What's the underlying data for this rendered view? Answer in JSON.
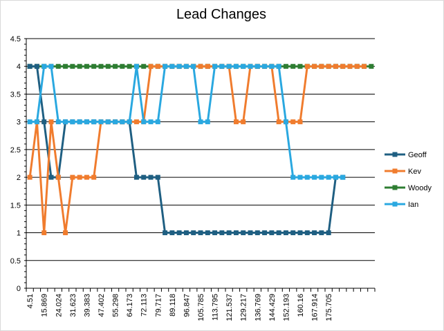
{
  "chart_data": {
    "type": "line",
    "title": "Lead Changes",
    "xlabel": "",
    "ylabel": "",
    "ylim": [
      0,
      4.5
    ],
    "y_ticks": [
      "0",
      "0.5",
      "1",
      "1.5",
      "2",
      "2.5",
      "3",
      "3.5",
      "4",
      "4.5"
    ],
    "x_tick_labels": [
      "4.51",
      "15.869",
      "24.024",
      "31.623",
      "39.383",
      "47.402",
      "55.298",
      "64.173",
      "72.113",
      "79.717",
      "89.118",
      "96.847",
      "105.785",
      "113.795",
      "121.537",
      "129.217",
      "136.769",
      "144.429",
      "152.193",
      "160.16",
      "167.914",
      "175.705"
    ],
    "grid": "horizontal",
    "legend_position": "right",
    "series": [
      {
        "name": "Geoff",
        "color": "#1f5f82",
        "values": [
          4,
          4,
          3,
          2,
          2,
          3,
          3,
          3,
          3,
          3,
          3,
          3,
          3,
          3,
          3,
          2,
          2,
          2,
          2,
          1,
          1,
          1,
          1,
          1,
          1,
          1,
          1,
          1,
          1,
          1,
          1,
          1,
          1,
          1,
          1,
          1,
          1,
          1,
          1,
          1,
          1,
          1,
          1,
          2,
          2
        ]
      },
      {
        "name": "Kev",
        "color": "#f07c2e",
        "values": [
          2,
          3,
          1,
          3,
          2,
          1,
          2,
          2,
          2,
          2,
          3,
          3,
          3,
          3,
          3,
          3,
          3,
          4,
          4,
          4,
          4,
          4,
          4,
          4,
          4,
          4,
          4,
          4,
          4,
          3,
          3,
          4,
          4,
          4,
          4,
          3,
          3,
          3,
          3,
          4,
          4,
          4,
          4,
          4,
          4,
          4,
          4,
          4
        ]
      },
      {
        "name": "Woody",
        "color": "#2e7d32",
        "values": [
          4,
          4,
          4,
          4,
          4,
          4,
          4,
          4,
          4,
          4,
          4,
          4,
          4,
          4,
          4,
          4,
          4,
          4,
          4,
          4,
          4,
          4,
          4,
          4,
          4,
          4,
          4,
          4,
          4,
          4,
          4,
          4,
          4,
          4,
          4,
          4,
          4,
          4,
          4,
          4,
          4,
          4,
          4,
          4,
          4,
          4,
          4,
          4,
          4
        ]
      },
      {
        "name": "Ian",
        "color": "#2aa8e0",
        "values": [
          3,
          3,
          4,
          4,
          3,
          3,
          3,
          3,
          3,
          3,
          3,
          3,
          3,
          3,
          3,
          4,
          3,
          3,
          3,
          4,
          4,
          4,
          4,
          4,
          3,
          3,
          4,
          4,
          4,
          4,
          4,
          4,
          4,
          4,
          4,
          4,
          3,
          2,
          2,
          2,
          2,
          2,
          2,
          2,
          2
        ]
      }
    ]
  }
}
